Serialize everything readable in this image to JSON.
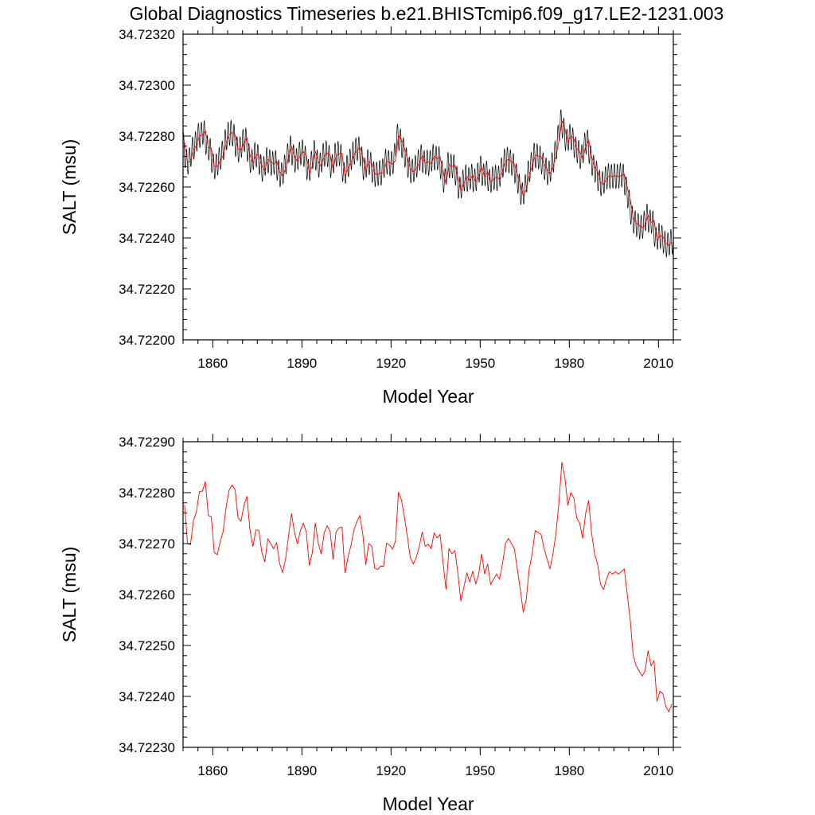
{
  "page": {
    "title": "Global Diagnostics Timeseries b.e21.BHISTcmip6.f09_g17.LE2-1231.003"
  },
  "chart_data": [
    {
      "type": "line",
      "xlabel": "Model Year",
      "ylabel": "SALT (msu)",
      "xlim": [
        1850,
        2015
      ],
      "ylim": [
        34.722,
        34.7232
      ],
      "x_ticks": [
        1860,
        1890,
        1920,
        1950,
        1980,
        2010
      ],
      "y_ticks": [
        "34.72200",
        "34.72220",
        "34.72240",
        "34.72260",
        "34.72280",
        "34.72300",
        "34.72320"
      ],
      "grid": false,
      "series": [
        {
          "resolution": "monthly",
          "color": "#000000",
          "seasonal_amplitude": 9e-05,
          "monthly_phase_peak": "Mar",
          "x_start": 1850,
          "x_end": 2015
        },
        {
          "resolution": "annual",
          "color": "#ff0000",
          "x_start": 1850,
          "x_end": 2015
        }
      ]
    },
    {
      "type": "line",
      "xlabel": "Model Year",
      "ylabel": "SALT (msu)",
      "xlim": [
        1850,
        2015
      ],
      "ylim": [
        34.7223,
        34.7229
      ],
      "x_ticks": [
        1860,
        1890,
        1920,
        1950,
        1980,
        2010
      ],
      "y_ticks": [
        "34.72230",
        "34.72240",
        "34.72250",
        "34.72260",
        "34.72270",
        "34.72280",
        "34.72290"
      ],
      "grid": false,
      "series": [
        {
          "resolution": "annual",
          "color": "#ff0000",
          "x": [
            1850,
            1851,
            1852,
            1853,
            1854,
            1855,
            1856,
            1857,
            1858,
            1859,
            1860,
            1861,
            1862,
            1863,
            1864,
            1865,
            1866,
            1867,
            1868,
            1869,
            1870,
            1871,
            1872,
            1873,
            1874,
            1875,
            1876,
            1877,
            1878,
            1879,
            1880,
            1881,
            1882,
            1883,
            1884,
            1885,
            1886,
            1887,
            1888,
            1889,
            1890,
            1891,
            1892,
            1893,
            1894,
            1895,
            1896,
            1897,
            1898,
            1899,
            1900,
            1901,
            1902,
            1903,
            1904,
            1905,
            1906,
            1907,
            1908,
            1909,
            1910,
            1911,
            1912,
            1913,
            1914,
            1915,
            1916,
            1917,
            1918,
            1919,
            1920,
            1921,
            1922,
            1923,
            1924,
            1925,
            1926,
            1927,
            1928,
            1929,
            1930,
            1931,
            1932,
            1933,
            1934,
            1935,
            1936,
            1937,
            1938,
            1939,
            1940,
            1941,
            1942,
            1943,
            1944,
            1945,
            1946,
            1947,
            1948,
            1949,
            1950,
            1951,
            1952,
            1953,
            1954,
            1955,
            1956,
            1957,
            1958,
            1959,
            1960,
            1961,
            1962,
            1963,
            1964,
            1965,
            1966,
            1967,
            1968,
            1969,
            1970,
            1971,
            1972,
            1973,
            1974,
            1975,
            1976,
            1977,
            1978,
            1979,
            1980,
            1981,
            1982,
            1983,
            1984,
            1985,
            1986,
            1987,
            1988,
            1989,
            1990,
            1991,
            1992,
            1993,
            1994,
            1995,
            1996,
            1997,
            1998,
            1999,
            2000,
            2001,
            2002,
            2003,
            2004,
            2005,
            2006,
            2007,
            2008,
            2009,
            2010,
            2011,
            2012,
            2013,
            2014
          ],
          "y": [
            34.722776,
            34.7227,
            34.722698,
            34.722745,
            34.722763,
            34.722802,
            34.722803,
            34.722822,
            34.722755,
            34.722753,
            34.722683,
            34.722678,
            34.722704,
            34.722724,
            34.722772,
            34.722805,
            34.722815,
            34.722806,
            34.722751,
            34.722744,
            34.722775,
            34.722793,
            34.722728,
            34.722694,
            34.722727,
            34.722726,
            34.722683,
            34.722664,
            34.722709,
            34.7227,
            34.72269,
            34.722702,
            34.722661,
            34.722643,
            34.72267,
            34.722715,
            34.722759,
            34.722722,
            34.722699,
            34.722726,
            34.72274,
            34.722722,
            34.722657,
            34.722682,
            34.722741,
            34.722701,
            34.722679,
            34.722721,
            34.722735,
            34.722723,
            34.722669,
            34.722723,
            34.722731,
            34.722732,
            34.722642,
            34.722673,
            34.722696,
            34.722727,
            34.722743,
            34.722755,
            34.722718,
            34.722658,
            34.7227,
            34.722695,
            34.722652,
            34.722649,
            34.722656,
            34.722655,
            34.722701,
            34.722697,
            34.722689,
            34.722705,
            34.722801,
            34.722786,
            34.722752,
            34.722713,
            34.722672,
            34.72266,
            34.722673,
            34.722694,
            34.722723,
            34.722695,
            34.722699,
            34.72269,
            34.722721,
            34.722711,
            34.722718,
            34.722663,
            34.72261,
            34.72269,
            34.72268,
            34.722686,
            34.722641,
            34.722587,
            34.722614,
            34.722642,
            34.722625,
            34.722646,
            34.722621,
            34.72264,
            34.72268,
            34.72264,
            34.72266,
            34.72262,
            34.72263,
            34.72264,
            34.72263,
            34.72266,
            34.7227,
            34.72271,
            34.7227,
            34.72269,
            34.72265,
            34.72261,
            34.722565,
            34.72259,
            34.72265,
            34.72268,
            34.722725,
            34.722722,
            34.722718,
            34.72269,
            34.72267,
            34.72265,
            34.72268,
            34.72272,
            34.72278,
            34.72286,
            34.72283,
            34.722775,
            34.7228,
            34.72279,
            34.72275,
            34.72274,
            34.72271,
            34.72276,
            34.722785,
            34.72272,
            34.72268,
            34.72266,
            34.72262,
            34.72261,
            34.72263,
            34.722645,
            34.72264,
            34.722645,
            34.72264,
            34.722645,
            34.72265,
            34.7226,
            34.72255,
            34.72248,
            34.72246,
            34.72245,
            34.72244,
            34.72245,
            34.72249,
            34.72246,
            34.72247,
            34.72239,
            34.72241,
            34.722405,
            34.72238,
            34.72237,
            34.722385
          ]
        }
      ]
    }
  ]
}
